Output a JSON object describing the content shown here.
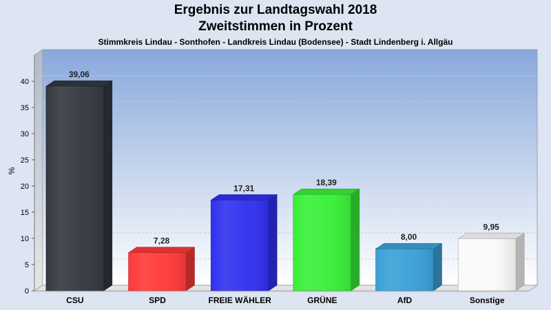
{
  "chart_data": {
    "type": "bar",
    "title": "Ergebnis zur Landtagswahl 2018",
    "subtitle": "Zweitstimmen in Prozent",
    "subtitle2": "Stimmkreis Lindau - Sonthofen - Landkreis Lindau (Bodensee) - Stadt Lindenberg i. Allgäu",
    "ylabel": "%",
    "ylim": [
      0,
      45
    ],
    "yticks": [
      0,
      5,
      10,
      15,
      20,
      25,
      30,
      35,
      40
    ],
    "grid": true,
    "categories": [
      "CSU",
      "SPD",
      "FREIE WÄHLER",
      "GRÜNE",
      "AfD",
      "Sonstige"
    ],
    "values": [
      39.06,
      7.28,
      17.31,
      18.39,
      8.0,
      9.95
    ],
    "value_labels": [
      "39,06",
      "7,28",
      "17,31",
      "18,39",
      "8,00",
      "9,95"
    ],
    "colors": [
      "#333840",
      "#ff3838",
      "#3030f0",
      "#38f038",
      "#3aa0d8",
      "#fafafa"
    ]
  }
}
